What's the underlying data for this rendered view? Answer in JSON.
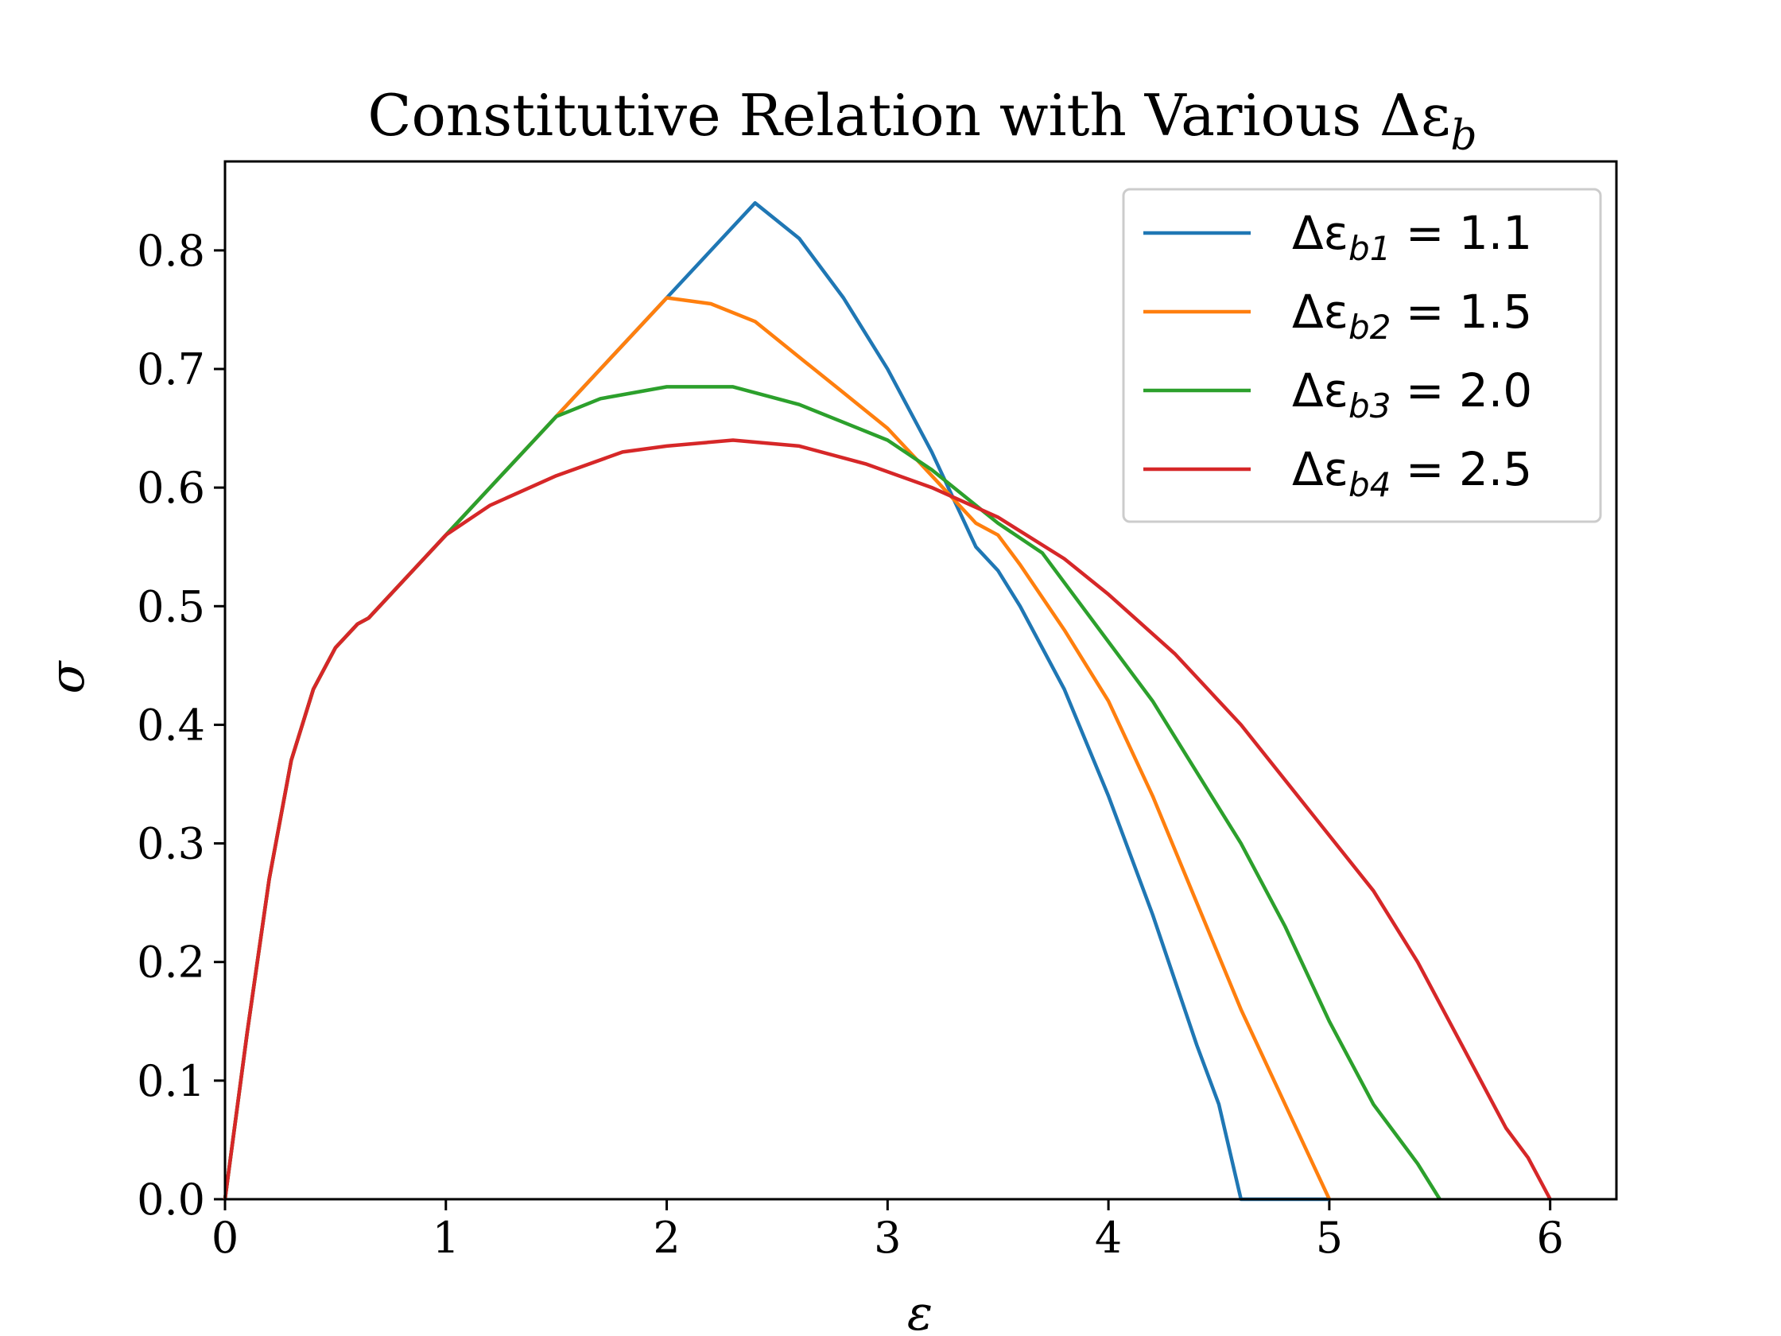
{
  "chart_data": {
    "type": "line",
    "title": "Constitutive Relation with Various Δε",
    "title_subscript": "b",
    "xlabel": "ε",
    "ylabel": "σ",
    "xlim": [
      0,
      6.3
    ],
    "ylim": [
      0,
      0.875
    ],
    "x_ticks": [
      0,
      1,
      2,
      3,
      4,
      5,
      6
    ],
    "x_tick_labels": [
      "0",
      "1",
      "2",
      "3",
      "4",
      "5",
      "6"
    ],
    "y_ticks": [
      0.0,
      0.1,
      0.2,
      0.3,
      0.4,
      0.5,
      0.6,
      0.7,
      0.8
    ],
    "y_tick_labels": [
      "0.0",
      "0.1",
      "0.2",
      "0.3",
      "0.4",
      "0.5",
      "0.6",
      "0.7",
      "0.8"
    ],
    "grid": false,
    "legend_position": "top-right",
    "series": [
      {
        "name": "Δε_b1 = 1.1",
        "legend": {
          "prefix": "Δε",
          "sub": "b1",
          "eq": " = 1.1"
        },
        "color": "#1f77b4",
        "x": [
          0,
          0.1,
          0.2,
          0.3,
          0.4,
          0.5,
          0.6,
          0.65,
          0.8,
          1.0,
          1.2,
          1.4,
          1.6,
          1.8,
          2.0,
          2.2,
          2.4,
          2.6,
          2.8,
          3.0,
          3.2,
          3.4,
          3.5,
          3.6,
          3.8,
          4.0,
          4.2,
          4.4,
          4.5,
          4.6,
          5.0
        ],
        "y": [
          0,
          0.14,
          0.27,
          0.37,
          0.43,
          0.465,
          0.485,
          0.49,
          0.52,
          0.56,
          0.6,
          0.64,
          0.68,
          0.72,
          0.76,
          0.8,
          0.84,
          0.81,
          0.76,
          0.7,
          0.63,
          0.55,
          0.53,
          0.5,
          0.43,
          0.34,
          0.24,
          0.13,
          0.08,
          0.0,
          0.0
        ]
      },
      {
        "name": "Δε_b2 = 1.5",
        "legend": {
          "prefix": "Δε",
          "sub": "b2",
          "eq": " = 1.5"
        },
        "color": "#ff7f0e",
        "x": [
          0,
          0.1,
          0.2,
          0.3,
          0.4,
          0.5,
          0.6,
          0.65,
          0.8,
          1.0,
          1.2,
          1.4,
          1.6,
          1.8,
          2.0,
          2.2,
          2.4,
          2.6,
          2.8,
          3.0,
          3.2,
          3.4,
          3.5,
          3.6,
          3.8,
          4.0,
          4.2,
          4.4,
          4.6,
          4.8,
          5.0
        ],
        "y": [
          0,
          0.14,
          0.27,
          0.37,
          0.43,
          0.465,
          0.485,
          0.49,
          0.52,
          0.56,
          0.6,
          0.64,
          0.68,
          0.72,
          0.76,
          0.755,
          0.74,
          0.71,
          0.68,
          0.65,
          0.61,
          0.57,
          0.56,
          0.535,
          0.48,
          0.42,
          0.34,
          0.25,
          0.16,
          0.08,
          0.0
        ]
      },
      {
        "name": "Δε_b3 = 2.0",
        "legend": {
          "prefix": "Δε",
          "sub": "b3",
          "eq": " = 2.0"
        },
        "color": "#2ca02c",
        "x": [
          0,
          0.1,
          0.2,
          0.3,
          0.4,
          0.5,
          0.6,
          0.65,
          0.8,
          1.0,
          1.2,
          1.4,
          1.5,
          1.7,
          2.0,
          2.3,
          2.6,
          2.8,
          3.0,
          3.2,
          3.4,
          3.5,
          3.7,
          4.0,
          4.2,
          4.4,
          4.6,
          4.8,
          5.0,
          5.2,
          5.4,
          5.5
        ],
        "y": [
          0,
          0.14,
          0.27,
          0.37,
          0.43,
          0.465,
          0.485,
          0.49,
          0.52,
          0.56,
          0.6,
          0.64,
          0.66,
          0.675,
          0.685,
          0.685,
          0.67,
          0.655,
          0.64,
          0.615,
          0.585,
          0.57,
          0.545,
          0.47,
          0.42,
          0.36,
          0.3,
          0.23,
          0.15,
          0.08,
          0.03,
          0.0
        ]
      },
      {
        "name": "Δε_b4 = 2.5",
        "legend": {
          "prefix": "Δε",
          "sub": "b4",
          "eq": " = 2.5"
        },
        "color": "#d62728",
        "x": [
          0,
          0.1,
          0.2,
          0.3,
          0.4,
          0.5,
          0.6,
          0.65,
          0.8,
          1.0,
          1.2,
          1.5,
          1.8,
          2.0,
          2.3,
          2.6,
          2.9,
          3.2,
          3.5,
          3.8,
          4.0,
          4.3,
          4.6,
          4.9,
          5.2,
          5.4,
          5.6,
          5.8,
          5.9,
          6.0
        ],
        "y": [
          0,
          0.14,
          0.27,
          0.37,
          0.43,
          0.465,
          0.485,
          0.49,
          0.52,
          0.56,
          0.585,
          0.61,
          0.63,
          0.635,
          0.64,
          0.635,
          0.62,
          0.6,
          0.575,
          0.54,
          0.51,
          0.46,
          0.4,
          0.33,
          0.26,
          0.2,
          0.13,
          0.06,
          0.035,
          0.0
        ]
      }
    ]
  }
}
